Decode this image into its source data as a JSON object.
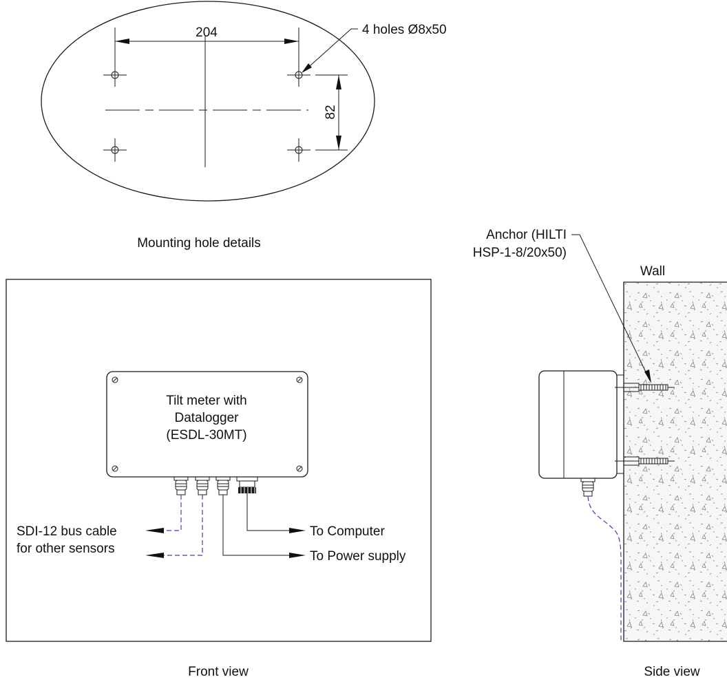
{
  "mounting": {
    "title": "Mounting hole details",
    "dim_horizontal": "204",
    "dim_vertical": "82",
    "holes_label": "4 holes Ø8x50"
  },
  "front": {
    "title": "Front view",
    "box_label": [
      "Tilt meter with",
      "Datalogger",
      "(ESDL-30MT)"
    ],
    "sdi_label": [
      "SDI-12 bus cable",
      "for other sensors"
    ],
    "computer_label": "To Computer",
    "power_label": "To Power supply"
  },
  "side": {
    "title": "Side view",
    "wall_label": "Wall",
    "anchor_label": [
      "Anchor (HILTI",
      "HSP-1-8/20x50)"
    ]
  },
  "colors": {
    "line": "#1a1a1a",
    "cable": "#3b3bc8",
    "wall_fill": "#f3f3f3"
  }
}
